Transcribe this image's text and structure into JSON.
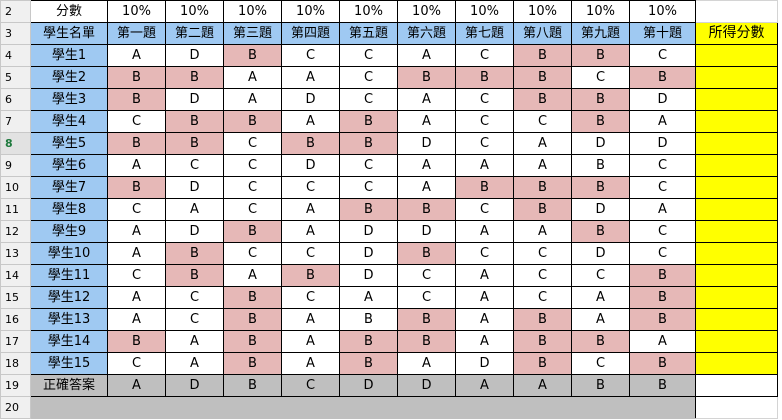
{
  "row_numbers": [
    "2",
    "3",
    "4",
    "5",
    "6",
    "7",
    "8",
    "9",
    "10",
    "11",
    "12",
    "13",
    "14",
    "15",
    "16",
    "17",
    "18",
    "19",
    "20"
  ],
  "selected_row": "8",
  "percent_label": "分數",
  "percents": [
    "10%",
    "10%",
    "10%",
    "10%",
    "10%",
    "10%",
    "10%",
    "10%",
    "10%",
    "10%"
  ],
  "header": {
    "name_col": "學生名單",
    "questions": [
      "第一題",
      "第二題",
      "第三題",
      "第四題",
      "第五題",
      "第六題",
      "第七題",
      "第八題",
      "第九題",
      "第十題"
    ],
    "score_col": "所得分數"
  },
  "students": [
    {
      "name": "學生1",
      "answers": [
        "A",
        "D",
        "B",
        "C",
        "C",
        "A",
        "C",
        "B",
        "B",
        "C"
      ],
      "wrong": [
        false,
        false,
        true,
        false,
        false,
        false,
        false,
        true,
        true,
        false
      ]
    },
    {
      "name": "學生2",
      "answers": [
        "B",
        "B",
        "A",
        "A",
        "C",
        "B",
        "B",
        "B",
        "C",
        "B"
      ],
      "wrong": [
        true,
        true,
        false,
        false,
        false,
        true,
        true,
        true,
        false,
        true
      ]
    },
    {
      "name": "學生3",
      "answers": [
        "B",
        "D",
        "A",
        "D",
        "C",
        "A",
        "C",
        "B",
        "B",
        "D"
      ],
      "wrong": [
        true,
        false,
        false,
        false,
        false,
        false,
        false,
        true,
        true,
        false
      ]
    },
    {
      "name": "學生4",
      "answers": [
        "C",
        "B",
        "B",
        "A",
        "B",
        "A",
        "C",
        "C",
        "B",
        "A"
      ],
      "wrong": [
        false,
        true,
        true,
        false,
        true,
        false,
        false,
        false,
        true,
        false
      ]
    },
    {
      "name": "學生5",
      "answers": [
        "B",
        "B",
        "C",
        "B",
        "B",
        "D",
        "C",
        "A",
        "D",
        "D"
      ],
      "wrong": [
        true,
        true,
        false,
        true,
        true,
        false,
        false,
        false,
        false,
        false
      ]
    },
    {
      "name": "學生6",
      "answers": [
        "A",
        "C",
        "C",
        "D",
        "C",
        "A",
        "A",
        "A",
        "B",
        "C"
      ],
      "wrong": [
        false,
        false,
        false,
        false,
        false,
        false,
        false,
        false,
        false,
        false
      ]
    },
    {
      "name": "學生7",
      "answers": [
        "B",
        "D",
        "C",
        "C",
        "C",
        "A",
        "B",
        "B",
        "B",
        "C"
      ],
      "wrong": [
        true,
        false,
        false,
        false,
        false,
        false,
        true,
        true,
        true,
        false
      ]
    },
    {
      "name": "學生8",
      "answers": [
        "C",
        "A",
        "C",
        "A",
        "B",
        "B",
        "C",
        "B",
        "D",
        "A"
      ],
      "wrong": [
        false,
        false,
        false,
        false,
        true,
        true,
        false,
        true,
        false,
        false
      ]
    },
    {
      "name": "學生9",
      "answers": [
        "A",
        "D",
        "B",
        "A",
        "D",
        "D",
        "A",
        "A",
        "B",
        "C"
      ],
      "wrong": [
        false,
        false,
        true,
        false,
        false,
        false,
        false,
        false,
        true,
        false
      ]
    },
    {
      "name": "學生10",
      "answers": [
        "A",
        "B",
        "C",
        "C",
        "D",
        "B",
        "C",
        "C",
        "D",
        "C"
      ],
      "wrong": [
        false,
        true,
        false,
        false,
        false,
        true,
        false,
        false,
        false,
        false
      ]
    },
    {
      "name": "學生11",
      "answers": [
        "C",
        "B",
        "A",
        "B",
        "D",
        "C",
        "A",
        "C",
        "C",
        "B"
      ],
      "wrong": [
        false,
        true,
        false,
        true,
        false,
        false,
        false,
        false,
        false,
        true
      ]
    },
    {
      "name": "學生12",
      "answers": [
        "A",
        "C",
        "B",
        "C",
        "A",
        "C",
        "A",
        "C",
        "A",
        "B"
      ],
      "wrong": [
        false,
        false,
        true,
        false,
        false,
        false,
        false,
        false,
        false,
        true
      ]
    },
    {
      "name": "學生13",
      "answers": [
        "A",
        "C",
        "B",
        "A",
        "B",
        "B",
        "A",
        "B",
        "A",
        "B"
      ],
      "wrong": [
        false,
        false,
        true,
        false,
        false,
        true,
        false,
        true,
        false,
        true
      ]
    },
    {
      "name": "學生14",
      "answers": [
        "B",
        "A",
        "B",
        "A",
        "B",
        "B",
        "A",
        "B",
        "B",
        "A"
      ],
      "wrong": [
        true,
        false,
        true,
        false,
        true,
        true,
        false,
        true,
        true,
        false
      ]
    },
    {
      "name": "學生15",
      "answers": [
        "C",
        "A",
        "B",
        "A",
        "B",
        "A",
        "D",
        "B",
        "C",
        "B"
      ],
      "wrong": [
        false,
        false,
        true,
        false,
        true,
        false,
        false,
        true,
        false,
        true
      ]
    }
  ],
  "answer_key": {
    "label": "正確答案",
    "answers": [
      "A",
      "D",
      "B",
      "C",
      "D",
      "D",
      "A",
      "A",
      "B",
      "B"
    ]
  },
  "colors": {
    "header_blue": "#9fc9f2",
    "wrong_pink": "#e6b8b7",
    "score_yellow": "#ffff00",
    "answer_gray": "#bfbfbf"
  }
}
